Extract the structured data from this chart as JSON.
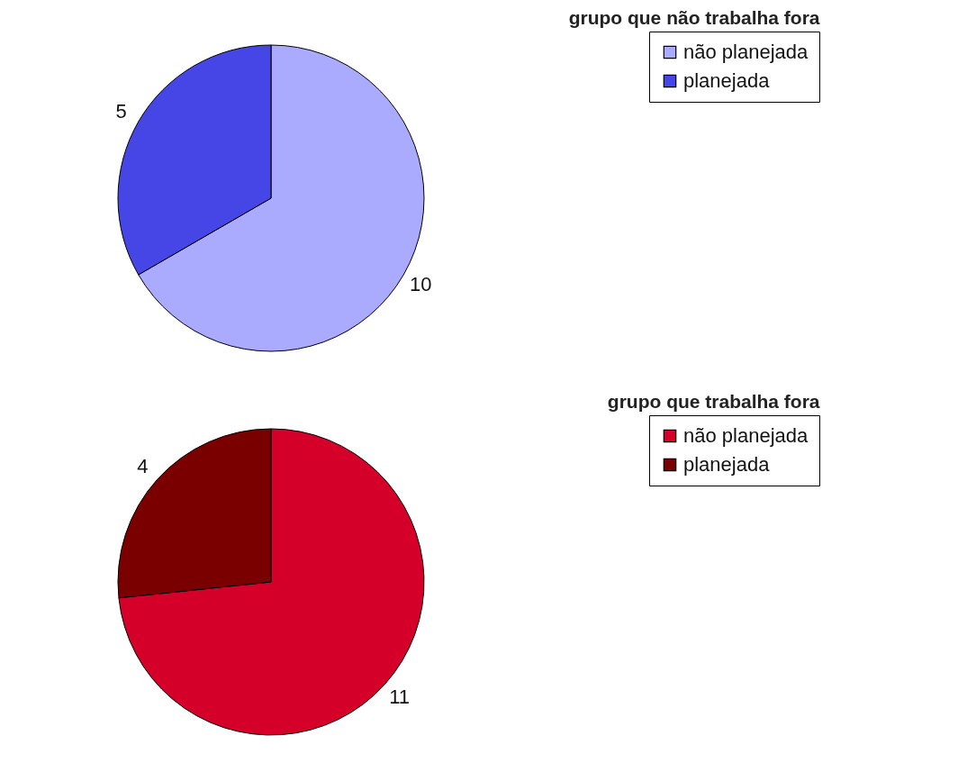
{
  "chart_data": [
    {
      "type": "pie",
      "title": "grupo que não trabalha fora",
      "categories": [
        "não planejada",
        "planejada"
      ],
      "values": [
        10,
        5
      ],
      "colors": [
        "#aaaaff",
        "#4646e6"
      ],
      "legend": "right",
      "data_labels": true
    },
    {
      "type": "pie",
      "title": "grupo que trabalha fora",
      "categories": [
        "não planejada",
        "planejada"
      ],
      "values": [
        11,
        4
      ],
      "colors": [
        "#d5002a",
        "#7a0000"
      ],
      "legend": "right",
      "data_labels": true
    }
  ]
}
